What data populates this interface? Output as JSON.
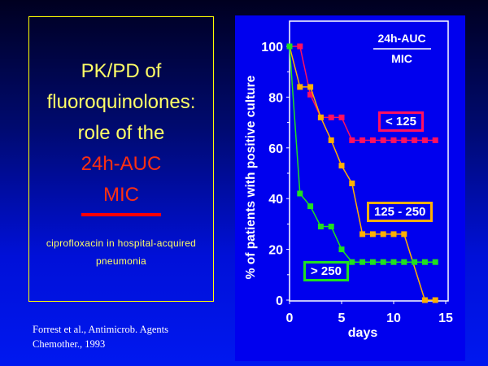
{
  "title": {
    "line1": "PK/PD of",
    "line2": "fluoroquinolones:",
    "line3": "role of the",
    "numerator": "24h-AUC",
    "denominator": "MIC",
    "subtitle_line1": "ciprofloxacin in hospital-acquired",
    "subtitle_line2": "pneumonia"
  },
  "reference": {
    "line1": "Forrest et al., Antimicrob. Agents",
    "line2": "Chemother., 1993"
  },
  "chart_data": {
    "type": "line",
    "title_numerator": "24h-AUC",
    "title_denominator": "MIC",
    "xlabel": "days",
    "ylabel": "% of patients with positive culture",
    "xlim": [
      0,
      15
    ],
    "ylim": [
      0,
      100
    ],
    "xticks": [
      "0",
      "5",
      "10",
      "15"
    ],
    "yticks": [
      "0",
      "20",
      "40",
      "60",
      "80",
      "100"
    ],
    "grid": false,
    "series": [
      {
        "name": "< 125",
        "color": "#ff1060",
        "x": [
          0,
          1,
          2,
          3,
          4,
          5,
          6,
          7,
          8,
          9,
          10,
          11,
          12,
          13,
          14
        ],
        "y": [
          100,
          100,
          81,
          72,
          72,
          72,
          63,
          63,
          63,
          63,
          63,
          63,
          63,
          63,
          63
        ]
      },
      {
        "name": "125 - 250",
        "color": "#ffb000",
        "x": [
          0,
          1,
          2,
          3,
          4,
          5,
          6,
          7,
          8,
          9,
          10,
          11,
          13,
          14
        ],
        "y": [
          100,
          84,
          84,
          72,
          63,
          53,
          46,
          26,
          26,
          26,
          26,
          26,
          0,
          0
        ]
      },
      {
        "name": "> 250",
        "color": "#20e020",
        "x": [
          0,
          1,
          2,
          3,
          4,
          5,
          6,
          7,
          8,
          9,
          10,
          11,
          12,
          13,
          14
        ],
        "y": [
          100,
          42,
          37,
          29,
          29,
          20,
          15,
          15,
          15,
          15,
          15,
          15,
          15,
          15,
          15
        ]
      }
    ]
  }
}
